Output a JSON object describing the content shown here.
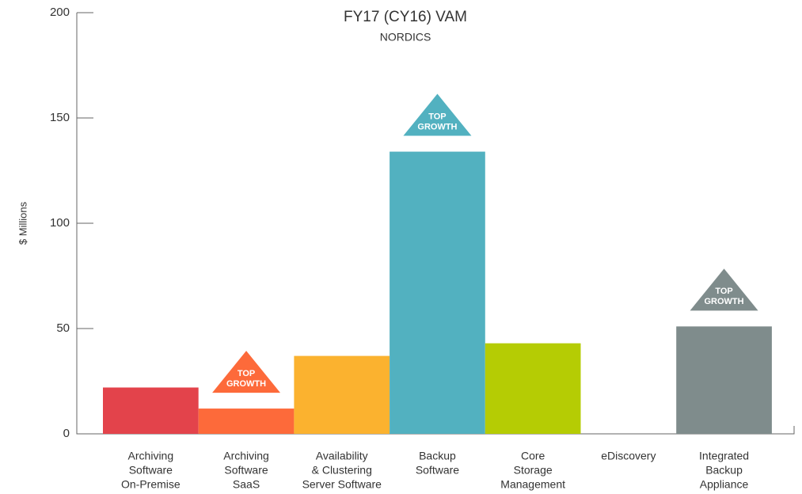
{
  "chart_data": {
    "type": "bar",
    "title": "FY17 (CY16) VAM",
    "subtitle": "NORDICS",
    "y_label": "$ Millions",
    "categories": [
      [
        "Archiving",
        "Software",
        "On-Premise"
      ],
      [
        "Archiving",
        "Software",
        "SaaS"
      ],
      [
        "Availability",
        "& Clustering",
        "Server Software"
      ],
      [
        "Backup",
        "Software"
      ],
      [
        "Core",
        "Storage",
        "Management"
      ],
      [
        "eDiscovery"
      ],
      [
        "Integrated",
        "Backup",
        "Appliance"
      ]
    ],
    "values": [
      22,
      12,
      37,
      134,
      43,
      0,
      51
    ],
    "colors": [
      "#e3434b",
      "#fd6a3a",
      "#fbb22f",
      "#52b1c0",
      "#b5cc04",
      "#9aa3a3",
      "#7f8c8c"
    ],
    "annotations": [
      null,
      [
        "TOP",
        "GROWTH"
      ],
      null,
      [
        "TOP",
        "GROWTH"
      ],
      null,
      null,
      [
        "TOP",
        "GROWTH"
      ]
    ],
    "ylim": [
      0,
      200
    ],
    "yticks": [
      0,
      50,
      100,
      150,
      200
    ],
    "grid": false
  }
}
